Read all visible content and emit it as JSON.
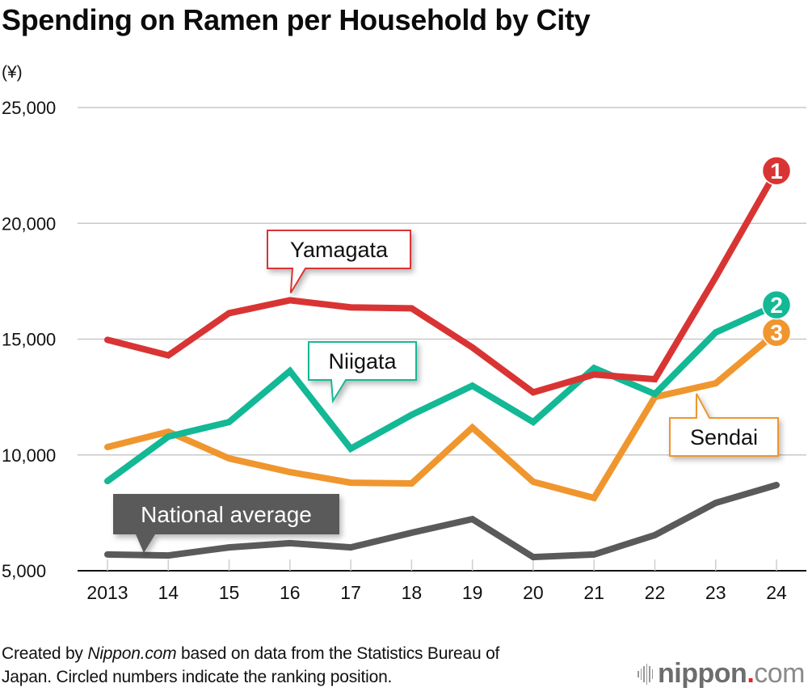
{
  "header": {
    "title": "Spending on Ramen per Household by City",
    "unit_label": "(¥)"
  },
  "footer": {
    "line1_pre": "Created by ",
    "line1_brand": "Nippon.com",
    "line1_post": " based on data from the Statistics Bureau of",
    "line2": "Japan. Circled numbers indicate the ranking position."
  },
  "logo": {
    "name": "nippon",
    "dot": ".",
    "suffix": "com"
  },
  "chart_data": {
    "type": "line",
    "title": "Spending on Ramen per Household by City",
    "xlabel": "",
    "ylabel": "(¥)",
    "ylim": [
      5000,
      25000
    ],
    "yticks": [
      5000,
      10000,
      15000,
      20000,
      25000
    ],
    "ytick_labels": [
      "5,000",
      "10,000",
      "15,000",
      "20,000",
      "25,000"
    ],
    "grid": true,
    "categories": [
      "2013",
      "14",
      "15",
      "16",
      "17",
      "18",
      "19",
      "20",
      "21",
      "22",
      "23",
      "24"
    ],
    "series": [
      {
        "name": "National average",
        "color": "#5a5a5a",
        "rank": null,
        "values": [
          5700,
          5660,
          6010,
          6190,
          6010,
          6640,
          7230,
          5590,
          5700,
          6540,
          7930,
          8700
        ]
      },
      {
        "name": "Sendai",
        "color": "#f0962e",
        "rank": "3",
        "values": [
          10340,
          11000,
          9850,
          9260,
          8800,
          8770,
          11180,
          8840,
          8140,
          12500,
          13090,
          15290
        ]
      },
      {
        "name": "Niigata",
        "color": "#13b895",
        "rank": "2",
        "values": [
          8870,
          10790,
          11420,
          13620,
          10270,
          11730,
          12990,
          11420,
          13750,
          12630,
          15290,
          16480
        ]
      },
      {
        "name": "Yamagata",
        "color": "#d93434",
        "rank": "1",
        "values": [
          14970,
          14300,
          16120,
          16680,
          16370,
          16330,
          14640,
          12700,
          13470,
          13270,
          17670,
          22270
        ]
      }
    ],
    "annotations": [
      {
        "series": "Yamagata",
        "text": "Yamagata",
        "anchor_category": "16",
        "style": "outlined"
      },
      {
        "series": "Niigata",
        "text": "Niigata",
        "anchor_category": "17",
        "style": "outlined"
      },
      {
        "series": "Sendai",
        "text": "Sendai",
        "anchor_category": "23",
        "style": "outlined"
      },
      {
        "series": "National average",
        "text": "National average",
        "anchor_category": "14",
        "style": "filled"
      }
    ],
    "legend": "callout-labels"
  }
}
